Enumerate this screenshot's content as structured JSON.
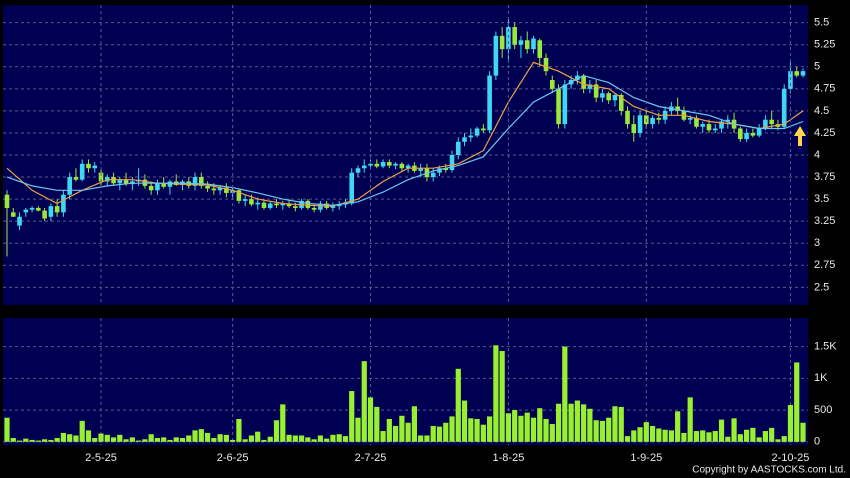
{
  "chart_data": [
    {
      "type": "candlestick",
      "up_color": "#3fd8f2",
      "down_color": "#9be83c",
      "grid": true,
      "ylim": [
        2.3,
        5.7
      ],
      "yticks": [
        2.5,
        2.75,
        3,
        3.25,
        3.5,
        3.75,
        4,
        4.25,
        4.5,
        4.75,
        5,
        5.25,
        5.5
      ],
      "open": [
        3.55,
        3.35,
        3.2,
        3.35,
        3.38,
        3.4,
        3.37,
        3.3,
        3.42,
        3.35,
        3.55,
        3.75,
        3.72,
        3.9,
        3.85,
        3.8,
        3.7,
        3.75,
        3.68,
        3.72,
        3.67,
        3.7,
        3.72,
        3.65,
        3.6,
        3.68,
        3.64,
        3.7,
        3.66,
        3.7,
        3.65,
        3.75,
        3.65,
        3.62,
        3.6,
        3.63,
        3.57,
        3.6,
        3.48,
        3.5,
        3.44,
        3.46,
        3.4,
        3.45,
        3.43,
        3.45,
        3.42,
        3.4,
        3.48,
        3.4,
        3.38,
        3.45,
        3.4,
        3.42,
        3.44,
        3.45,
        3.8,
        3.85,
        3.88,
        3.9,
        3.87,
        3.92,
        3.88,
        3.9,
        3.85,
        3.88,
        3.82,
        3.85,
        3.75,
        3.8,
        3.85,
        3.83,
        4.0,
        4.15,
        4.2,
        4.22,
        4.3,
        4.28,
        4.9,
        5.35,
        5.2,
        5.45,
        5.25,
        5.3,
        5.2,
        5.3,
        5.1,
        4.85,
        4.75,
        4.35,
        4.8,
        4.85,
        4.9,
        4.75,
        4.8,
        4.65,
        4.7,
        4.62,
        4.68,
        4.5,
        4.35,
        4.25,
        4.45,
        4.35,
        4.42,
        4.4,
        4.5,
        4.55,
        4.5,
        4.4,
        4.42,
        4.32,
        4.35,
        4.28,
        4.3,
        4.38,
        4.4,
        4.3,
        4.18,
        4.25,
        4.22,
        4.3,
        4.4,
        4.35,
        4.32,
        4.75,
        4.95,
        4.9
      ],
      "high": [
        3.6,
        3.4,
        3.35,
        3.4,
        3.42,
        3.42,
        3.4,
        3.45,
        3.5,
        3.6,
        3.8,
        3.85,
        3.95,
        3.95,
        3.92,
        3.85,
        3.78,
        3.8,
        3.75,
        3.8,
        3.75,
        3.85,
        3.78,
        3.7,
        3.72,
        3.75,
        3.72,
        3.78,
        3.72,
        3.75,
        3.8,
        3.8,
        3.7,
        3.68,
        3.66,
        3.68,
        3.64,
        3.62,
        3.55,
        3.55,
        3.52,
        3.5,
        3.48,
        3.5,
        3.48,
        3.5,
        3.46,
        3.5,
        3.5,
        3.45,
        3.48,
        3.48,
        3.46,
        3.48,
        3.5,
        3.85,
        3.88,
        3.95,
        3.95,
        3.95,
        3.95,
        3.95,
        3.92,
        3.92,
        3.9,
        3.92,
        3.9,
        3.9,
        3.85,
        3.88,
        3.9,
        4.05,
        4.2,
        4.25,
        4.3,
        4.32,
        4.35,
        4.95,
        5.4,
        5.45,
        5.55,
        5.5,
        5.35,
        5.4,
        5.35,
        5.32,
        5.15,
        4.9,
        4.8,
        4.85,
        4.9,
        4.95,
        4.92,
        4.85,
        4.85,
        4.75,
        4.72,
        4.7,
        4.7,
        4.55,
        4.45,
        4.5,
        4.5,
        4.45,
        4.48,
        4.55,
        4.6,
        4.65,
        4.55,
        4.45,
        4.45,
        4.38,
        4.4,
        4.35,
        4.4,
        4.45,
        4.48,
        4.32,
        4.3,
        4.3,
        4.35,
        4.45,
        4.5,
        4.4,
        4.8,
        5.05,
        5.0,
        4.98
      ],
      "low": [
        2.85,
        3.3,
        3.15,
        3.3,
        3.35,
        3.36,
        3.25,
        3.25,
        3.3,
        3.3,
        3.5,
        3.7,
        3.7,
        3.8,
        3.8,
        3.65,
        3.65,
        3.65,
        3.6,
        3.65,
        3.6,
        3.65,
        3.62,
        3.55,
        3.55,
        3.62,
        3.55,
        3.65,
        3.6,
        3.62,
        3.6,
        3.62,
        3.58,
        3.55,
        3.55,
        3.52,
        3.52,
        3.45,
        3.42,
        3.42,
        3.38,
        3.38,
        3.38,
        3.4,
        3.38,
        3.4,
        3.36,
        3.38,
        3.38,
        3.35,
        3.35,
        3.38,
        3.36,
        3.38,
        3.4,
        3.43,
        3.75,
        3.8,
        3.84,
        3.85,
        3.85,
        3.85,
        3.84,
        3.82,
        3.8,
        3.8,
        3.75,
        3.7,
        3.7,
        3.76,
        3.8,
        3.8,
        3.95,
        4.1,
        4.15,
        4.2,
        4.25,
        4.25,
        4.85,
        5.1,
        5.05,
        5.2,
        5.1,
        5.15,
        5.15,
        5.0,
        4.9,
        4.7,
        4.3,
        4.3,
        4.75,
        4.8,
        4.7,
        4.7,
        4.6,
        4.6,
        4.58,
        4.55,
        4.45,
        4.3,
        4.15,
        4.2,
        4.3,
        4.3,
        4.35,
        4.35,
        4.45,
        4.45,
        4.38,
        4.35,
        4.3,
        4.25,
        4.25,
        4.25,
        4.25,
        4.3,
        4.25,
        4.15,
        4.15,
        4.2,
        4.2,
        4.28,
        4.3,
        4.28,
        4.3,
        4.7,
        4.88,
        4.88
      ],
      "close": [
        3.4,
        3.3,
        3.3,
        3.38,
        3.4,
        3.37,
        3.28,
        3.42,
        3.35,
        3.55,
        3.75,
        3.72,
        3.9,
        3.85,
        3.88,
        3.7,
        3.75,
        3.68,
        3.72,
        3.67,
        3.7,
        3.72,
        3.65,
        3.6,
        3.68,
        3.64,
        3.7,
        3.66,
        3.7,
        3.65,
        3.75,
        3.65,
        3.62,
        3.6,
        3.63,
        3.57,
        3.6,
        3.48,
        3.5,
        3.44,
        3.46,
        3.4,
        3.45,
        3.43,
        3.45,
        3.42,
        3.4,
        3.48,
        3.4,
        3.38,
        3.45,
        3.4,
        3.42,
        3.44,
        3.45,
        3.8,
        3.85,
        3.88,
        3.9,
        3.87,
        3.92,
        3.88,
        3.9,
        3.85,
        3.88,
        3.82,
        3.85,
        3.75,
        3.8,
        3.85,
        3.83,
        4.0,
        4.15,
        4.2,
        4.22,
        4.3,
        4.28,
        4.9,
        5.35,
        5.2,
        5.45,
        5.25,
        5.3,
        5.2,
        5.32,
        5.1,
        4.95,
        4.75,
        4.35,
        4.8,
        4.85,
        4.9,
        4.75,
        4.8,
        4.65,
        4.7,
        4.62,
        4.68,
        4.5,
        4.35,
        4.25,
        4.45,
        4.35,
        4.42,
        4.4,
        4.5,
        4.55,
        4.5,
        4.4,
        4.42,
        4.32,
        4.35,
        4.28,
        4.3,
        4.38,
        4.4,
        4.3,
        4.18,
        4.25,
        4.22,
        4.3,
        4.4,
        4.35,
        4.32,
        4.75,
        4.95,
        4.9,
        4.95
      ],
      "lines": [
        {
          "color": "#f0a040",
          "x": [
            0,
            4,
            8,
            12,
            16,
            20,
            24,
            28,
            32,
            36,
            40,
            44,
            48,
            52,
            56,
            60,
            64,
            68,
            72,
            76,
            80,
            84,
            88,
            92,
            96,
            100,
            104,
            108,
            112,
            116,
            120,
            124,
            127
          ],
          "values": [
            3.85,
            3.6,
            3.45,
            3.6,
            3.72,
            3.72,
            3.68,
            3.67,
            3.66,
            3.6,
            3.5,
            3.45,
            3.43,
            3.42,
            3.5,
            3.7,
            3.85,
            3.85,
            3.9,
            4.05,
            4.6,
            5.05,
            4.95,
            4.8,
            4.75,
            4.55,
            4.45,
            4.45,
            4.38,
            4.35,
            4.3,
            4.35,
            4.5
          ]
        },
        {
          "color": "#6cc8f0",
          "x": [
            0,
            4,
            8,
            12,
            16,
            20,
            24,
            28,
            32,
            36,
            40,
            44,
            48,
            52,
            56,
            60,
            64,
            68,
            72,
            76,
            80,
            84,
            88,
            92,
            96,
            100,
            104,
            108,
            112,
            116,
            120,
            124,
            127
          ],
          "values": [
            3.75,
            3.65,
            3.6,
            3.6,
            3.65,
            3.68,
            3.68,
            3.68,
            3.67,
            3.63,
            3.57,
            3.5,
            3.45,
            3.43,
            3.47,
            3.58,
            3.72,
            3.82,
            3.88,
            3.98,
            4.3,
            4.6,
            4.75,
            4.9,
            4.82,
            4.65,
            4.55,
            4.5,
            4.45,
            4.35,
            4.3,
            4.3,
            4.38
          ]
        }
      ]
    },
    {
      "type": "bar",
      "color": "#99f030",
      "grid": true,
      "ylim": [
        -50,
        1950
      ],
      "yticks": [
        0,
        500,
        {
          "value": 1000,
          "label": "1K"
        },
        {
          "value": 1500,
          "label": "1.5K"
        }
      ],
      "categories": [
        null,
        null,
        null,
        null,
        null,
        null,
        null,
        null,
        null,
        null,
        null,
        null,
        null,
        null,
        null,
        "2-5-25",
        null,
        null,
        null,
        null,
        null,
        null,
        null,
        null,
        null,
        null,
        null,
        null,
        null,
        null,
        null,
        null,
        null,
        null,
        null,
        null,
        "2-6-25",
        null,
        null,
        null,
        null,
        null,
        null,
        null,
        null,
        null,
        null,
        null,
        null,
        null,
        null,
        null,
        null,
        null,
        null,
        null,
        null,
        null,
        "2-7-25",
        null,
        null,
        null,
        null,
        null,
        null,
        null,
        null,
        null,
        null,
        null,
        null,
        null,
        null,
        null,
        null,
        null,
        null,
        null,
        null,
        null,
        "1-8-25",
        null,
        null,
        null,
        null,
        null,
        null,
        null,
        null,
        null,
        null,
        null,
        null,
        null,
        null,
        null,
        null,
        null,
        null,
        null,
        null,
        null,
        "1-9-25",
        null,
        null,
        null,
        null,
        null,
        null,
        null,
        null,
        null,
        null,
        null,
        null,
        null,
        null,
        null,
        null,
        null,
        null,
        null,
        null,
        null,
        null,
        "2-10-25",
        null,
        null
      ],
      "values": [
        380,
        60,
        20,
        50,
        30,
        20,
        40,
        30,
        60,
        140,
        120,
        100,
        330,
        180,
        60,
        130,
        110,
        70,
        110,
        40,
        70,
        20,
        40,
        120,
        60,
        70,
        30,
        70,
        60,
        100,
        180,
        200,
        140,
        60,
        120,
        110,
        30,
        360,
        40,
        100,
        160,
        30,
        80,
        340,
        590,
        110,
        100,
        100,
        70,
        40,
        100,
        50,
        110,
        120,
        90,
        800,
        380,
        1270,
        700,
        550,
        170,
        360,
        250,
        410,
        300,
        560,
        100,
        100,
        250,
        240,
        300,
        400,
        1150,
        650,
        370,
        360,
        270,
        400,
        1520,
        1430,
        450,
        500,
        410,
        460,
        380,
        530,
        360,
        280,
        600,
        1500,
        600,
        650,
        590,
        520,
        340,
        330,
        380,
        560,
        550,
        90,
        180,
        230,
        310,
        250,
        210,
        190,
        180,
        480,
        140,
        700,
        170,
        180,
        150,
        170,
        350,
        80,
        370,
        120,
        190,
        220,
        70,
        170,
        220,
        40,
        90,
        580,
        1250,
        300
      ]
    }
  ],
  "copyright": "Copyright by AASTOCKS.com Ltd."
}
